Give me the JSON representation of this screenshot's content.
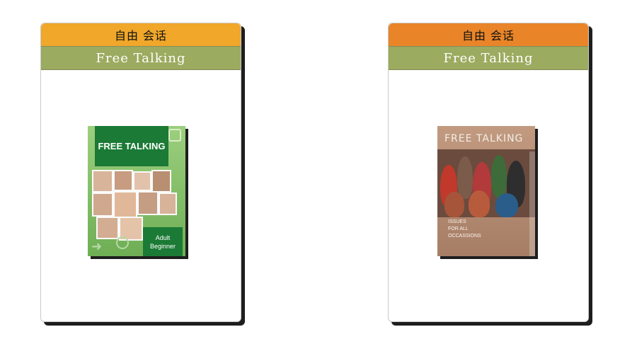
{
  "cards": [
    {
      "header_title": "自由 会话",
      "header_color": "#f0a72a",
      "subtitle": "Free Talking",
      "subtitle_color": "#9bab5f",
      "cover": {
        "title": "FREE TALKING",
        "badge_line1": "Adult",
        "badge_line2": "Beginner"
      }
    },
    {
      "header_title": "自由 会话",
      "header_color": "#e98528",
      "subtitle": "Free Talking",
      "subtitle_color": "#9bab5f",
      "cover": {
        "title": "FREE TALKING",
        "caption_line1": "ISSUES",
        "caption_line2": "FOR ALL",
        "caption_line3": "OCCASSIONS"
      }
    }
  ]
}
